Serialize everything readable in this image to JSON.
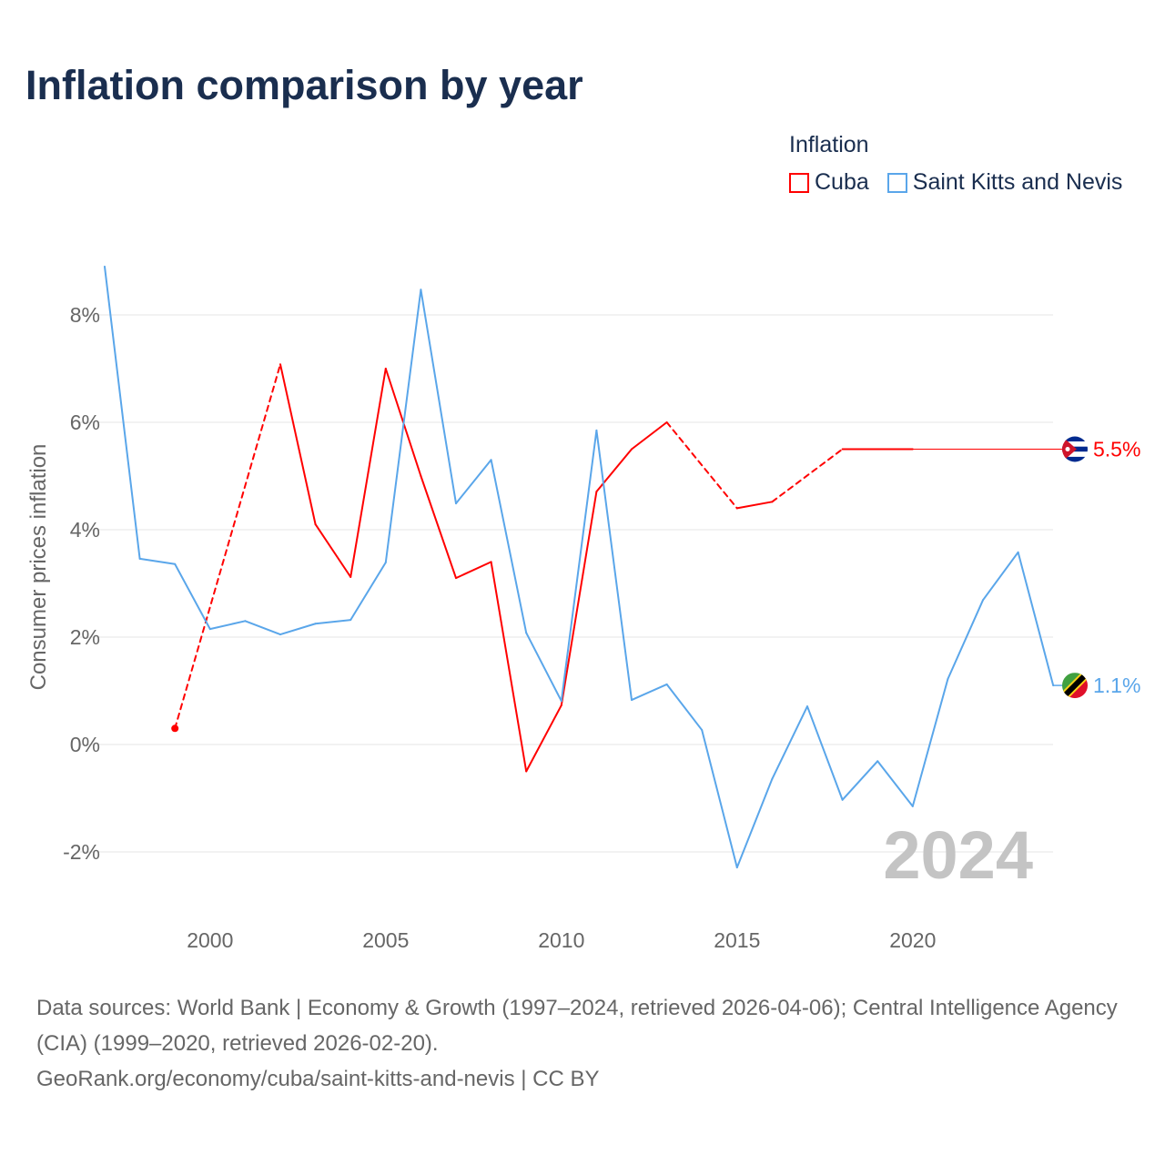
{
  "title": "Inflation comparison by year",
  "legend": {
    "title": "Inflation",
    "items": [
      {
        "label": "Cuba",
        "color": "#ff0000"
      },
      {
        "label": "Saint Kitts and Nevis",
        "color": "#5aa6ea"
      }
    ]
  },
  "footer": {
    "line1": "Data sources: World Bank | Economy & Growth (1997–2024, retrieved 2026-04-06); Central Intelligence Agency (CIA) (1999–2020, retrieved 2026-02-20).",
    "line2": "GeoRank.org/economy/cuba/saint-kitts-and-nevis | CC BY"
  },
  "chart_data": {
    "type": "line",
    "title": "Inflation comparison by year",
    "ylabel": "Consumer prices inflation",
    "xlabel": "",
    "xlim": [
      1997,
      2024
    ],
    "ylim": [
      -3.2,
      9.0
    ],
    "yticks": [
      -2,
      0,
      2,
      4,
      6,
      8
    ],
    "ytick_labels": [
      "-2%",
      "0%",
      "2%",
      "4%",
      "6%",
      "8%"
    ],
    "xticks": [
      2000,
      2005,
      2010,
      2015,
      2020
    ],
    "xtick_labels": [
      "2000",
      "2005",
      "2010",
      "2015",
      "2020"
    ],
    "grid": true,
    "year_watermark": "2024",
    "series": [
      {
        "name": "Cuba",
        "color": "#ff0000",
        "end_label": "5.5%",
        "flag": "cuba-flag",
        "x": [
          1999,
          2002,
          2003,
          2004,
          2005,
          2006,
          2007,
          2008,
          2009,
          2010,
          2011,
          2012,
          2013,
          2015,
          2016,
          2018,
          2019,
          2020
        ],
        "values": [
          0.3,
          7.08,
          4.1,
          3.12,
          7.0,
          5.0,
          3.1,
          3.4,
          -0.5,
          0.73,
          4.71,
          5.5,
          6.0,
          4.4,
          4.52,
          5.5,
          5.5,
          5.5
        ],
        "extend_to": 2024
      },
      {
        "name": "Saint Kitts and Nevis",
        "color": "#5aa6ea",
        "end_label": "1.1%",
        "flag": "saint-kitts-and-nevis-flag",
        "x": [
          1997,
          1998,
          1999,
          2000,
          2001,
          2002,
          2003,
          2004,
          2005,
          2006,
          2007,
          2008,
          2009,
          2010,
          2011,
          2012,
          2013,
          2014,
          2015,
          2016,
          2017,
          2018,
          2019,
          2020,
          2021,
          2022,
          2023,
          2024
        ],
        "values": [
          8.9,
          3.46,
          3.36,
          2.15,
          2.3,
          2.05,
          2.25,
          2.32,
          3.39,
          8.47,
          4.49,
          5.3,
          2.08,
          0.81,
          5.85,
          0.83,
          1.12,
          0.27,
          -2.29,
          -0.64,
          0.71,
          -1.03,
          -0.31,
          -1.15,
          1.22,
          2.69,
          3.58,
          1.1
        ]
      }
    ]
  }
}
